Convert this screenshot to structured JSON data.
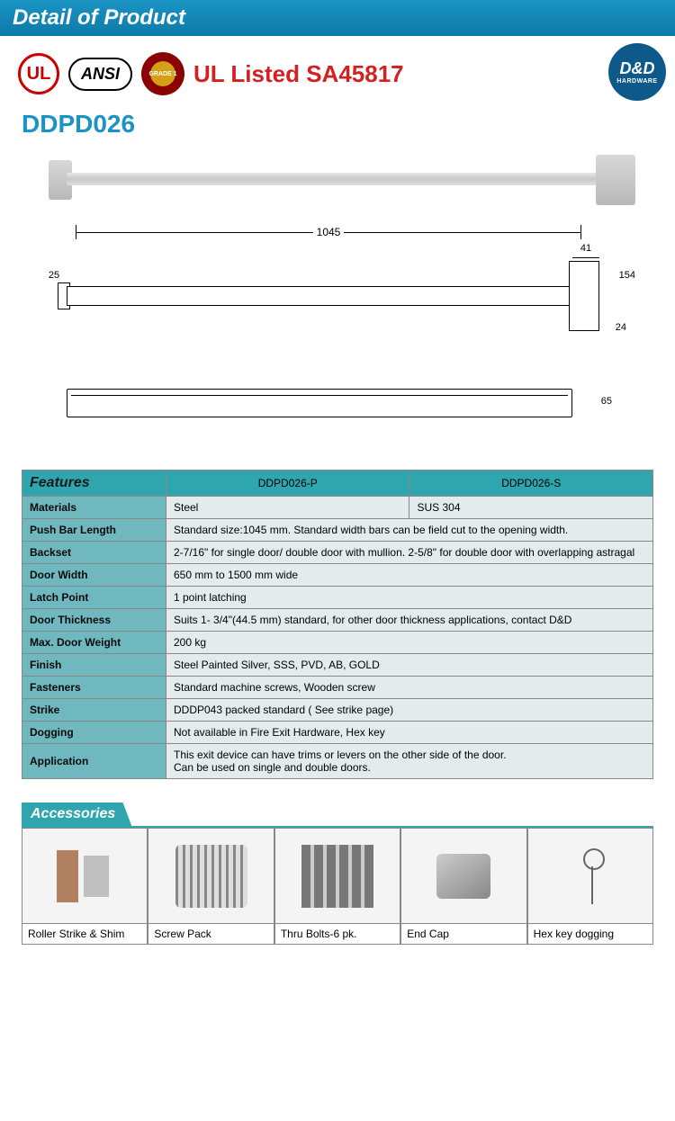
{
  "header": {
    "title": "Detail of Product"
  },
  "logos": {
    "ul": "UL",
    "ansi": "ANSI",
    "grade": "GRADE 1",
    "ul_listed": "UL Listed SA45817",
    "brand_main": "D&D",
    "brand_sub": "HARDWARE"
  },
  "model": "DDPD026",
  "dimensions": {
    "length": "1045",
    "d41": "41",
    "d25": "25",
    "d154": "154",
    "d24": "24",
    "d65": "65"
  },
  "features": {
    "heading": "Features",
    "variants": {
      "p": "DDPD026-P",
      "s": "DDPD026-S"
    },
    "rows": {
      "materials_label": "Materials",
      "materials_p": "Steel",
      "materials_s": "SUS 304",
      "pushbar_label": "Push Bar Length",
      "pushbar_val": "Standard size:1045 mm. Standard width bars can be field cut to the opening width.",
      "backset_label": "Backset",
      "backset_val": "2-7/16\" for single door/ double door with mullion. 2-5/8\" for double door with overlapping astragal",
      "doorwidth_label": "Door Width",
      "doorwidth_val": "650 mm to 1500 mm wide",
      "latch_label": "Latch Point",
      "latch_val": "1 point latching",
      "thickness_label": "Door Thickness",
      "thickness_val": "Suits 1- 3/4\"(44.5 mm) standard, for other door thickness applications, contact D&D",
      "weight_label": "Max. Door Weight",
      "weight_val": "200 kg",
      "finish_label": "Finish",
      "finish_val": "Steel Painted Silver, SSS, PVD, AB, GOLD",
      "fasteners_label": "Fasteners",
      "fasteners_val": "Standard machine screws, Wooden screw",
      "strike_label": "Strike",
      "strike_val": "DDDP043 packed standard ( See strike page)",
      "dogging_label": "Dogging",
      "dogging_val": "Not available in Fire Exit Hardware, Hex key",
      "app_label": "Application",
      "app_val": "This exit device can have trims or levers on the other side of the door.\nCan be used on single and double doors."
    }
  },
  "accessories": {
    "heading": "Accessories",
    "items": {
      "a1": "Roller Strike & Shim",
      "a2": "Screw Pack",
      "a3": "Thru Bolts-6 pk.",
      "a4": "End Cap",
      "a5": "Hex key dogging"
    }
  },
  "colors": {
    "header_bg": "#1a94c4",
    "accent": "#2fa6ae",
    "label_bg": "#6fb8bf",
    "val_bg": "#e3ebec",
    "red": "#d42020",
    "brand_blue": "#0d5a8a"
  }
}
